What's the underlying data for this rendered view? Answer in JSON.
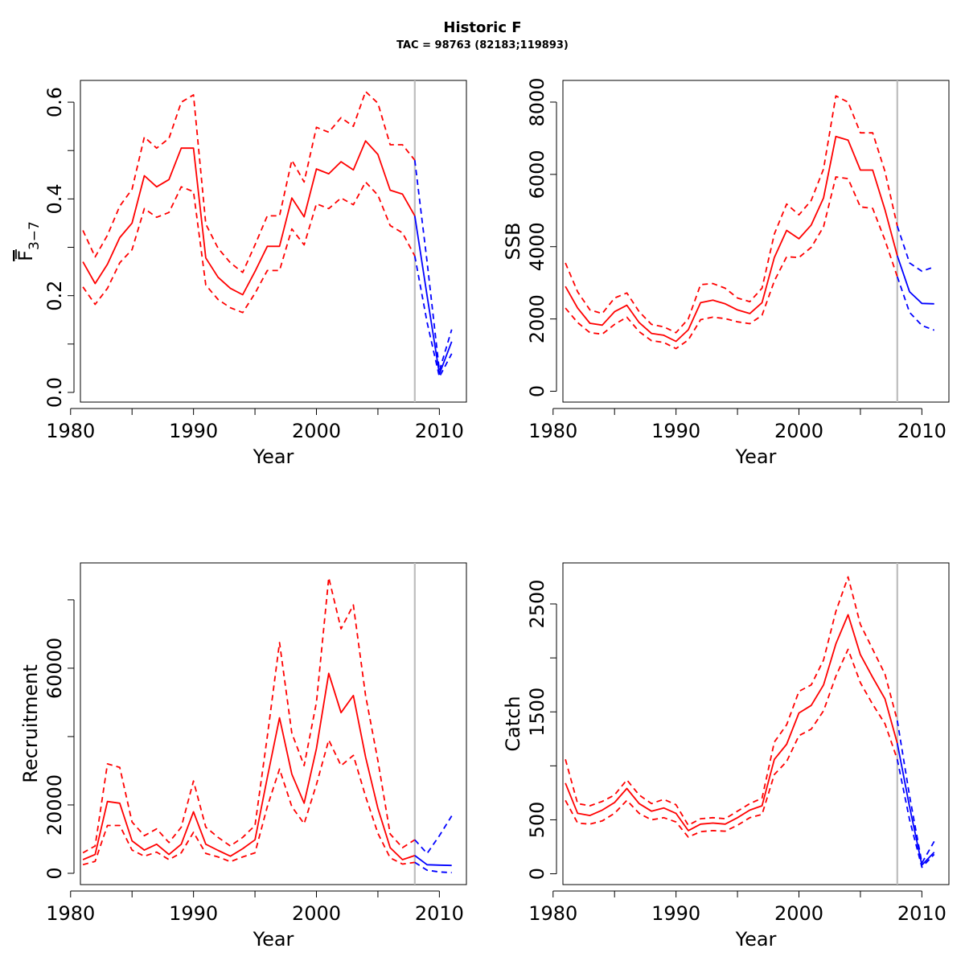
{
  "figure": {
    "title": "Historic F",
    "subtitle": "TAC = 98763 (82183;119893)"
  },
  "colors": {
    "historic": "#ff0000",
    "projection": "#0000ff",
    "divider": "#bebebe"
  },
  "chart_data": [
    {
      "type": "line",
      "xlabel": "Year",
      "ylabel": "F̄3−7",
      "ylabel_parts": {
        "main": "F",
        "sub": "3−7"
      },
      "xlim": [
        1980.8,
        2012.2
      ],
      "ylim": [
        -0.02,
        0.645
      ],
      "xticks": [
        1980,
        1990,
        2000,
        2010
      ],
      "xminor": [
        1985,
        1995,
        2005
      ],
      "yticks": [
        0.0,
        0.1,
        0.2,
        0.3,
        0.4,
        0.5,
        0.6
      ],
      "ytick_labels": [
        "0.0",
        "",
        "0.2",
        "",
        "0.4",
        "",
        "0.6"
      ],
      "divider_year": 2008,
      "x": [
        1981,
        1982,
        1983,
        1984,
        1985,
        1986,
        1987,
        1988,
        1989,
        1990,
        1991,
        1992,
        1993,
        1994,
        1995,
        1996,
        1997,
        1998,
        1999,
        2000,
        2001,
        2002,
        2003,
        2004,
        2005,
        2006,
        2007,
        2008
      ],
      "series": [
        {
          "role": "estimate",
          "values": [
            0.27,
            0.225,
            0.265,
            0.32,
            0.35,
            0.448,
            0.425,
            0.44,
            0.505,
            0.505,
            0.278,
            0.238,
            0.215,
            0.202,
            0.25,
            0.302,
            0.302,
            0.402,
            0.363,
            0.462,
            0.452,
            0.477,
            0.46,
            0.52,
            0.492,
            0.418,
            0.41,
            0.365
          ]
        },
        {
          "role": "upper",
          "values": [
            0.335,
            0.28,
            0.325,
            0.385,
            0.42,
            0.528,
            0.505,
            0.525,
            0.6,
            0.615,
            0.348,
            0.298,
            0.268,
            0.248,
            0.305,
            0.365,
            0.365,
            0.48,
            0.435,
            0.548,
            0.538,
            0.568,
            0.55,
            0.622,
            0.598,
            0.512,
            0.512,
            0.48
          ]
        },
        {
          "role": "lower",
          "values": [
            0.218,
            0.182,
            0.215,
            0.268,
            0.295,
            0.38,
            0.362,
            0.372,
            0.425,
            0.415,
            0.222,
            0.192,
            0.175,
            0.165,
            0.205,
            0.252,
            0.252,
            0.338,
            0.305,
            0.39,
            0.38,
            0.402,
            0.388,
            0.435,
            0.408,
            0.345,
            0.33,
            0.282
          ]
        }
      ],
      "projection": {
        "x": [
          2008,
          2009,
          2010,
          2011
        ],
        "estimate": [
          0.365,
          0.2,
          0.038,
          0.105
        ],
        "upper": [
          0.48,
          0.27,
          0.045,
          0.13
        ],
        "lower": [
          0.282,
          0.145,
          0.032,
          0.08
        ]
      }
    },
    {
      "type": "line",
      "xlabel": "Year",
      "ylabel": "SSB",
      "xlim": [
        1980.8,
        2012.2
      ],
      "ylim": [
        -300,
        8600
      ],
      "xticks": [
        1980,
        1990,
        2000,
        2010
      ],
      "xminor": [
        1985,
        1995,
        2005
      ],
      "yticks": [
        0,
        2000,
        4000,
        6000,
        8000
      ],
      "ytick_labels": [
        "0",
        "2000",
        "4000",
        "6000",
        "8000"
      ],
      "divider_year": 2008,
      "x": [
        1981,
        1982,
        1983,
        1984,
        1985,
        1986,
        1987,
        1988,
        1989,
        1990,
        1991,
        1992,
        1993,
        1994,
        1995,
        1996,
        1997,
        1998,
        1999,
        2000,
        2001,
        2002,
        2003,
        2004,
        2005,
        2006,
        2007,
        2008
      ],
      "series": [
        {
          "role": "estimate",
          "values": [
            2900,
            2300,
            1880,
            1830,
            2200,
            2380,
            1900,
            1600,
            1550,
            1380,
            1700,
            2450,
            2520,
            2420,
            2250,
            2150,
            2450,
            3700,
            4450,
            4220,
            4600,
            5350,
            7050,
            6950,
            6120,
            6120,
            5020,
            3750
          ]
        },
        {
          "role": "upper",
          "values": [
            3550,
            2750,
            2250,
            2150,
            2580,
            2720,
            2200,
            1850,
            1780,
            1620,
            2000,
            2950,
            2980,
            2850,
            2580,
            2480,
            2850,
            4350,
            5180,
            4880,
            5280,
            6150,
            8170,
            8000,
            7150,
            7150,
            6080,
            4570
          ]
        },
        {
          "role": "lower",
          "values": [
            2300,
            1900,
            1620,
            1580,
            1850,
            2050,
            1650,
            1400,
            1350,
            1180,
            1420,
            1980,
            2050,
            2010,
            1920,
            1870,
            2100,
            3050,
            3720,
            3700,
            3980,
            4550,
            5930,
            5880,
            5100,
            5060,
            4180,
            3170
          ]
        }
      ],
      "projection": {
        "x": [
          2008,
          2009,
          2010,
          2011
        ],
        "estimate": [
          3750,
          2750,
          2430,
          2420
        ],
        "upper": [
          4570,
          3550,
          3320,
          3440
        ],
        "lower": [
          3170,
          2180,
          1820,
          1690
        ]
      }
    },
    {
      "type": "line",
      "xlabel": "Year",
      "ylabel": "Recruitment",
      "xlim": [
        1980.8,
        2012.2
      ],
      "ylim": [
        -3300,
        90800
      ],
      "xticks": [
        1980,
        1990,
        2000,
        2010
      ],
      "xminor": [
        1985,
        1995,
        2005
      ],
      "yticks": [
        0,
        20000,
        40000,
        60000,
        80000
      ],
      "ytick_labels": [
        "0",
        "20000",
        "",
        "60000",
        ""
      ],
      "divider_year": 2008,
      "x": [
        1981,
        1982,
        1983,
        1984,
        1985,
        1986,
        1987,
        1988,
        1989,
        1990,
        1991,
        1992,
        1993,
        1994,
        1995,
        1996,
        1997,
        1998,
        1999,
        2000,
        2001,
        2002,
        2003,
        2004,
        2005,
        2006,
        2007,
        2008
      ],
      "series": [
        {
          "role": "estimate",
          "values": [
            4000,
            5500,
            21000,
            20500,
            9500,
            6800,
            8500,
            5500,
            8500,
            18000,
            8500,
            6700,
            5000,
            7200,
            9800,
            28000,
            45500,
            29000,
            20500,
            36500,
            58500,
            47000,
            52000,
            34000,
            19000,
            7500,
            4000,
            5200
          ]
        },
        {
          "role": "upper",
          "values": [
            6000,
            8000,
            32000,
            31000,
            15000,
            11000,
            13000,
            9000,
            13500,
            27000,
            13500,
            10500,
            8000,
            10500,
            14000,
            40000,
            67500,
            41000,
            31500,
            50000,
            86500,
            71500,
            78500,
            52000,
            33000,
            11500,
            7500,
            9800
          ]
        },
        {
          "role": "lower",
          "values": [
            2500,
            3500,
            14000,
            14000,
            6800,
            5000,
            6200,
            4000,
            6000,
            12000,
            5800,
            4800,
            3400,
            4800,
            6000,
            19500,
            30500,
            19500,
            14500,
            26000,
            39000,
            31500,
            34500,
            22500,
            11700,
            4500,
            2700,
            3200
          ]
        }
      ],
      "projection": {
        "x": [
          2008,
          2009,
          2010,
          2011
        ],
        "estimate": [
          5200,
          2500,
          2400,
          2300
        ],
        "upper": [
          9800,
          5800,
          11000,
          16800
        ],
        "lower": [
          3200,
          900,
          400,
          200
        ]
      }
    },
    {
      "type": "line",
      "xlabel": "Year",
      "ylabel": "Catch",
      "xlim": [
        1980.8,
        2012.2
      ],
      "ylim": [
        -100,
        2880
      ],
      "xticks": [
        1980,
        1990,
        2000,
        2010
      ],
      "xminor": [
        1985,
        1995,
        2005
      ],
      "yticks": [
        0,
        500,
        1000,
        1500,
        2000,
        2500
      ],
      "ytick_labels": [
        "0",
        "500",
        "",
        "1500",
        "",
        "2500"
      ],
      "divider_year": 2008,
      "x": [
        1981,
        1982,
        1983,
        1984,
        1985,
        1986,
        1987,
        1988,
        1989,
        1990,
        1991,
        1992,
        1993,
        1994,
        1995,
        1996,
        1997,
        1998,
        1999,
        2000,
        2001,
        2002,
        2003,
        2004,
        2005,
        2006,
        2007,
        2008
      ],
      "series": [
        {
          "role": "estimate",
          "values": [
            840,
            560,
            540,
            590,
            660,
            790,
            650,
            580,
            610,
            560,
            400,
            460,
            470,
            460,
            520,
            590,
            630,
            1060,
            1200,
            1490,
            1560,
            1750,
            2130,
            2400,
            2030,
            1820,
            1620,
            1210
          ]
        },
        {
          "role": "upper",
          "values": [
            1060,
            650,
            630,
            670,
            730,
            870,
            730,
            650,
            690,
            640,
            450,
            510,
            520,
            510,
            580,
            650,
            700,
            1220,
            1380,
            1690,
            1750,
            1980,
            2430,
            2750,
            2310,
            2080,
            1850,
            1420
          ]
        },
        {
          "role": "lower",
          "values": [
            680,
            470,
            460,
            490,
            560,
            680,
            560,
            500,
            520,
            480,
            340,
            390,
            400,
            395,
            450,
            520,
            550,
            920,
            1040,
            1280,
            1340,
            1510,
            1830,
            2080,
            1770,
            1570,
            1390,
            1060
          ]
        }
      ],
      "projection": {
        "x": [
          2008,
          2009,
          2010,
          2011
        ],
        "estimate": [
          1210,
          620,
          80,
          200
        ],
        "upper": [
          1420,
          720,
          100,
          300
        ],
        "lower": [
          1060,
          500,
          60,
          180
        ]
      }
    }
  ]
}
